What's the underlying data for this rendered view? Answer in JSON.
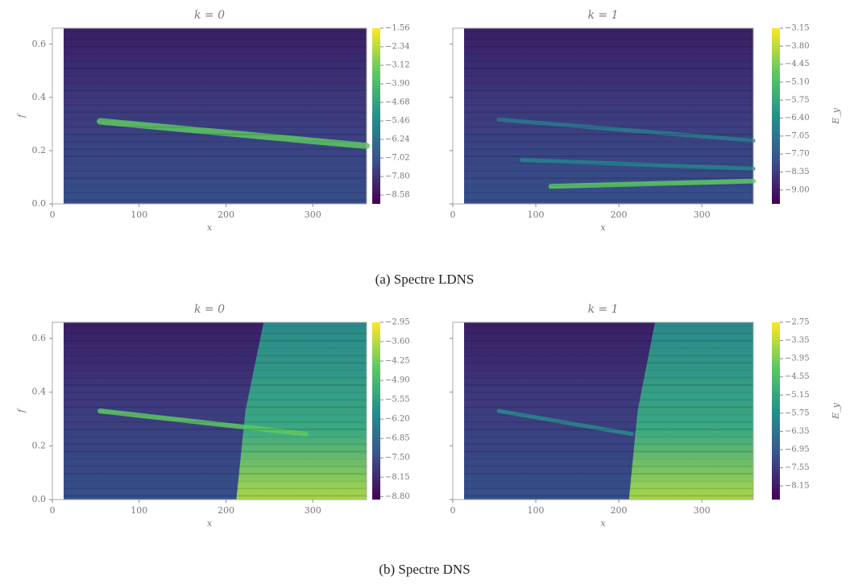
{
  "chart_data": [
    {
      "type": "heatmap",
      "title": "k = 0",
      "xlabel": "x",
      "ylabel": "f",
      "xlim": [
        0,
        362
      ],
      "xticks": [
        0,
        100,
        200,
        300
      ],
      "ylim": [
        0,
        0.66
      ],
      "yticks": [
        {
          "value": 0,
          "label": "0.0"
        },
        0.2,
        0.4,
        0.6
      ],
      "clim": [
        -8.95,
        -1.56
      ],
      "cticks": [
        {
          "value": -1.56,
          "label": "−1.56"
        },
        {
          "value": -2.34,
          "label": "−2.34"
        },
        {
          "value": -3.12,
          "label": "−3.12"
        },
        {
          "value": -3.9,
          "label": "−3.90"
        },
        {
          "value": -4.68,
          "label": "−4.68"
        },
        {
          "value": -5.46,
          "label": "−5.46"
        },
        {
          "value": -6.24,
          "label": "−6.24"
        },
        {
          "value": -7.02,
          "label": "−7.02"
        },
        {
          "value": -7.8,
          "label": "−7.80"
        },
        {
          "value": -8.58,
          "label": "−8.58"
        }
      ]
    },
    {
      "type": "heatmap",
      "title": "k = 1",
      "xlabel": "x",
      "clabel": "E_y",
      "xlim": [
        0,
        362
      ],
      "xticks": [
        0,
        100,
        200,
        300
      ],
      "ylim": [
        0,
        0.66
      ],
      "yticks": [
        {
          "value": 0,
          "label": "0.0"
        },
        0.2,
        0.4,
        0.6
      ],
      "clim": [
        -9.5,
        -3.15
      ],
      "cticks": [
        {
          "value": -3.15,
          "label": "−3.15"
        },
        {
          "value": -3.8,
          "label": "−3.80"
        },
        {
          "value": -4.45,
          "label": "−4.45"
        },
        {
          "value": -5.1,
          "label": "−5.10"
        },
        {
          "value": -5.75,
          "label": "−5.75"
        },
        {
          "value": -6.4,
          "label": "−6.40"
        },
        {
          "value": -7.05,
          "label": "−7.05"
        },
        {
          "value": -7.7,
          "label": "−7.70"
        },
        {
          "value": -8.35,
          "label": "−8.35"
        },
        {
          "value": -9.0,
          "label": "−9.00"
        }
      ]
    },
    {
      "type": "heatmap",
      "title": "k = 0",
      "xlabel": "x",
      "ylabel": "f",
      "xlim": [
        0,
        362
      ],
      "xticks": [
        0,
        100,
        200,
        300
      ],
      "ylim": [
        0,
        0.66
      ],
      "yticks": [
        {
          "value": 0,
          "label": "0.0"
        },
        0.2,
        0.4,
        0.6
      ],
      "clim": [
        -8.9,
        -2.95
      ],
      "cticks": [
        {
          "value": -2.95,
          "label": "−2.95"
        },
        {
          "value": -3.6,
          "label": "−3.60"
        },
        {
          "value": -4.25,
          "label": "−4.25"
        },
        {
          "value": -4.9,
          "label": "−4.90"
        },
        {
          "value": -5.55,
          "label": "−5.55"
        },
        {
          "value": -6.2,
          "label": "−6.20"
        },
        {
          "value": -6.85,
          "label": "−6.85"
        },
        {
          "value": -7.5,
          "label": "−7.50"
        },
        {
          "value": -8.15,
          "label": "−8.15"
        },
        {
          "value": -8.8,
          "label": "−8.80"
        }
      ]
    },
    {
      "type": "heatmap",
      "title": "k = 1",
      "xlabel": "x",
      "clabel": "E_y",
      "xlim": [
        0,
        362
      ],
      "xticks": [
        0,
        100,
        200,
        300
      ],
      "ylim": [
        0,
        0.66
      ],
      "yticks": [
        {
          "value": 0,
          "label": "0.0"
        },
        0.2,
        0.4,
        0.6
      ],
      "clim": [
        -8.6,
        -2.75
      ],
      "cticks": [
        {
          "value": -2.75,
          "label": "−2.75"
        },
        {
          "value": -3.35,
          "label": "−3.35"
        },
        {
          "value": -3.95,
          "label": "−3.95"
        },
        {
          "value": -4.55,
          "label": "−4.55"
        },
        {
          "value": -5.15,
          "label": "−5.15"
        },
        {
          "value": -5.75,
          "label": "−5.75"
        },
        {
          "value": -6.35,
          "label": "−6.35"
        },
        {
          "value": -6.95,
          "label": "−6.95"
        },
        {
          "value": -7.55,
          "label": "−7.55"
        },
        {
          "value": -8.15,
          "label": "−8.15"
        }
      ]
    }
  ],
  "captions": [
    "(a) Spectre LDNS",
    "(b) Spectre DNS"
  ]
}
